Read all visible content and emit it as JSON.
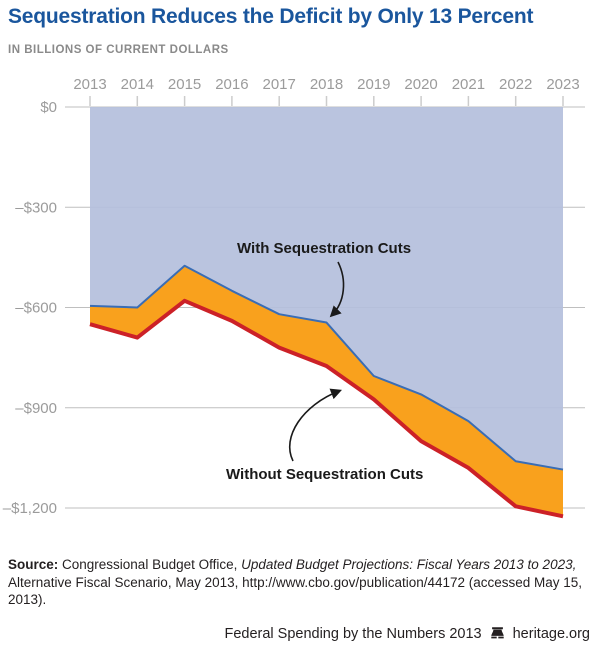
{
  "header": {
    "title": "Sequestration Reduces the Deficit by Only 13 Percent",
    "subtitle": "IN BILLIONS OF CURRENT DOLLARS"
  },
  "chart_data": {
    "type": "area",
    "title": "Sequestration Reduces the Deficit by Only 13 Percent",
    "units_note": "IN BILLIONS OF CURRENT DOLLARS",
    "x": [
      2013,
      2014,
      2015,
      2016,
      2017,
      2018,
      2019,
      2020,
      2021,
      2022,
      2023
    ],
    "xaxis_position": "top",
    "series": [
      {
        "name": "With Sequestration Cuts",
        "values": [
          -595,
          -600,
          -475,
          -550,
          -620,
          -645,
          -805,
          -860,
          -940,
          -1060,
          -1085
        ],
        "line_color": "#3a6db5",
        "fill_color": "#b4bfdc",
        "fill_region": "from $0 axis down to this line"
      },
      {
        "name": "Without Sequestration Cuts",
        "values": [
          -650,
          -690,
          -580,
          -640,
          -720,
          -775,
          -875,
          -1000,
          -1080,
          -1195,
          -1225
        ],
        "line_color": "#cc2127",
        "fill_color": "#f9a11d",
        "fill_region": "band between the two lines"
      }
    ],
    "yticks": [
      {
        "label": "$0",
        "value": 0
      },
      {
        "label": "–$300",
        "value": -300
      },
      {
        "label": "–$600",
        "value": -600
      },
      {
        "label": "–$900",
        "value": -900
      },
      {
        "label": "–$1,200",
        "value": -1200
      }
    ],
    "ylim": [
      -1200,
      0
    ],
    "grid": true,
    "axis_text_color": "#9b9b9b",
    "grid_color": "#bfbfbf",
    "annotations": [
      {
        "text": "With Sequestration Cuts",
        "points_to": "upper blue line near 2018"
      },
      {
        "text": "Without Sequestration Cuts",
        "points_to": "lower red line near 2019"
      }
    ]
  },
  "footer": {
    "source_label": "Source:",
    "source_normal": " Congressional Budget Office, ",
    "source_italic": "Updated Budget Projections: Fiscal Years 2013 to 2023,",
    "source_rest": " Alternative Fiscal Scenario, May 2013, http://www.cbo.gov/publication/44172 (accessed May 15, 2013).",
    "brand_text": "Federal Spending by the Numbers 2013",
    "brand_site": "heritage.org"
  },
  "colors": {
    "title_blue": "#1a569d",
    "area_blue": "#b4bfdc",
    "line_blue": "#3a6db5",
    "band_orange": "#f9a11d",
    "line_red": "#cc2127",
    "annotation_ink": "#1a1a1a"
  }
}
